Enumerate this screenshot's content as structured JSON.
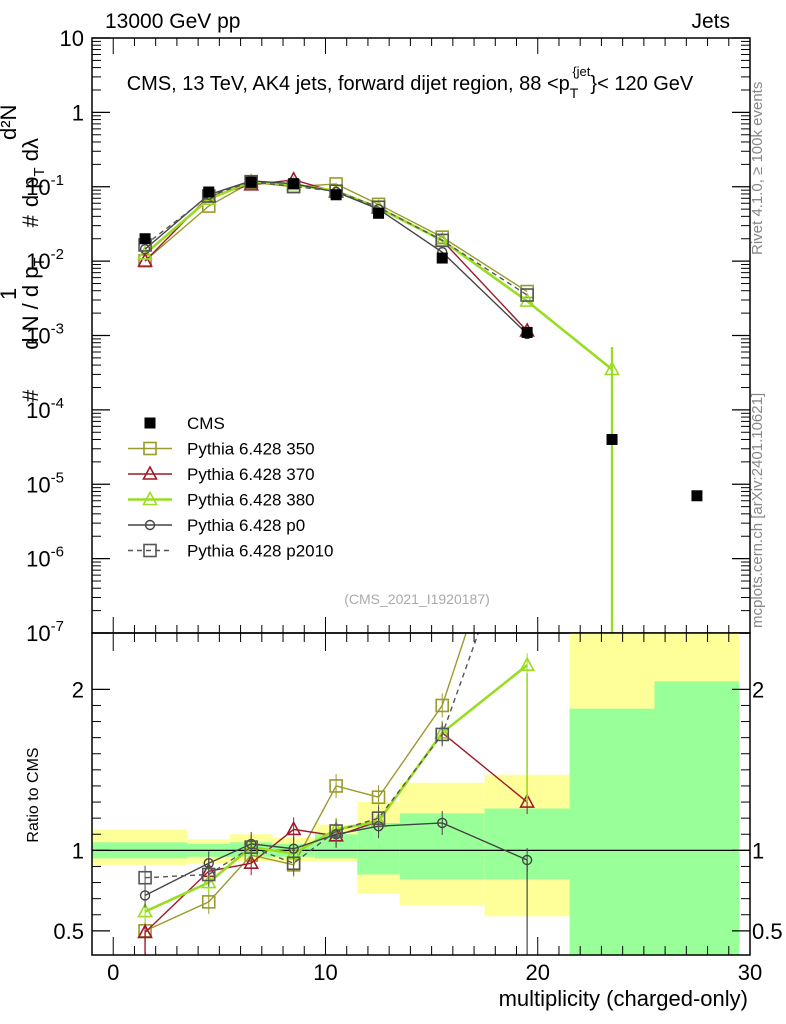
{
  "header": {
    "left": "13000 GeV pp",
    "right": "Jets"
  },
  "side_labels": {
    "rivet": "Rivet 4.1.0, ≥ 100k events",
    "mcplots": "mcplots.cern.ch [arXiv:2401.10621]"
  },
  "chart_data": [
    {
      "type": "scatter",
      "title": "CMS, 13 TeV, AK4 jets, forward dijet region, 88 <p_T^{jet}< 120 GeV",
      "analysis_tag": "(CMS_2021_I1920187)",
      "xlabel": "",
      "ylabel": "1/(dN/dp_T) · d²N/(dp_T dλ)",
      "y_scale": "log",
      "xlim": [
        -1,
        30
      ],
      "ylim": [
        1e-07,
        10
      ],
      "y_ticks": [
        "10^{-7}",
        "10^{-6}",
        "10^{-5}",
        "10^{-4}",
        "10^{-3}",
        "10^{-2}",
        "10^{-1}",
        "1",
        "10"
      ],
      "legend_position": "bottom-left",
      "series": [
        {
          "name": "CMS",
          "color": "#000000",
          "marker": "filled-square",
          "x": [
            1.5,
            4.5,
            6.5,
            8.5,
            10.5,
            12.5,
            15.5,
            19.5,
            23.5,
            27.5
          ],
          "y": [
            0.02,
            0.085,
            0.115,
            0.11,
            0.078,
            0.044,
            0.011,
            0.0011,
            4e-05,
            7e-06
          ]
        },
        {
          "name": "Pythia 6.428 350",
          "color": "#9a9a2e",
          "marker": "open-square",
          "x": [
            1.5,
            4.5,
            6.5,
            8.5,
            10.5,
            12.5,
            15.5,
            19.5
          ],
          "y": [
            0.0101,
            0.055,
            0.115,
            0.1,
            0.109,
            0.058,
            0.021,
            0.0039
          ]
        },
        {
          "name": "Pythia 6.428 370",
          "color": "#9e1a2a",
          "marker": "open-triangle",
          "x": [
            1.5,
            4.5,
            6.5,
            8.5,
            10.5,
            12.5,
            15.5,
            19.5
          ],
          "y": [
            0.01,
            0.074,
            0.106,
            0.124,
            0.085,
            0.052,
            0.019,
            0.00115
          ]
        },
        {
          "name": "Pythia 6.428 380",
          "color": "#99dd22",
          "marker": "open-triangle",
          "x": [
            1.5,
            4.5,
            6.5,
            8.5,
            10.5,
            12.5,
            15.5,
            19.5,
            23.5
          ],
          "y": [
            0.0125,
            0.068,
            0.117,
            0.107,
            0.088,
            0.052,
            0.019,
            0.0029,
            0.00035
          ]
        },
        {
          "name": "Pythia 6.428 p0",
          "color": "#444444",
          "marker": "open-circle",
          "x": [
            1.5,
            4.5,
            6.5,
            8.5,
            10.5,
            12.5,
            15.5,
            19.5
          ],
          "y": [
            0.0145,
            0.078,
            0.12,
            0.11,
            0.085,
            0.05,
            0.0132,
            0.00105
          ]
        },
        {
          "name": "Pythia 6.428 p2010",
          "color": "#555555",
          "marker": "open-square",
          "dashed": true,
          "x": [
            1.5,
            4.5,
            6.5,
            8.5,
            10.5,
            12.5,
            15.5,
            19.5
          ],
          "y": [
            0.0165,
            0.075,
            0.117,
            0.101,
            0.087,
            0.053,
            0.019,
            0.0035
          ]
        }
      ]
    },
    {
      "type": "line",
      "xlabel": "multiplicity (charged-only)",
      "ylabel": "Ratio to CMS",
      "xlim": [
        -1,
        30
      ],
      "ylim": [
        0.35,
        2.35
      ],
      "x_ticks": [
        0,
        10,
        20,
        30
      ],
      "y_ticks": [
        0.5,
        1,
        2
      ],
      "x_tick_labels": [
        "0",
        "10",
        "20",
        "30"
      ],
      "y_tick_labels": [
        "0.5",
        "1",
        "2"
      ],
      "uncertainty_bands": {
        "edges": [
          -1,
          3.5,
          5.5,
          7.5,
          9.5,
          11.5,
          13.5,
          17.5,
          21.5,
          25.5,
          29.5
        ],
        "green_lo": [
          0.95,
          0.96,
          0.96,
          0.96,
          0.95,
          0.85,
          0.82,
          0.82,
          0.35,
          0.35
        ],
        "green_hi": [
          1.05,
          1.04,
          1.05,
          1.04,
          1.1,
          1.17,
          1.23,
          1.26,
          1.88,
          2.05
        ],
        "yellow_lo": [
          0.91,
          0.92,
          0.93,
          0.93,
          0.93,
          0.73,
          0.66,
          0.59,
          0.35,
          0.35
        ],
        "yellow_hi": [
          1.13,
          1.07,
          1.1,
          1.08,
          1.16,
          1.3,
          1.42,
          1.47,
          2.35,
          2.35
        ]
      },
      "series": [
        {
          "name": "Pythia 6.428 350",
          "color": "#9a9a2e",
          "marker": "open-square",
          "x": [
            1.5,
            4.5,
            6.5,
            8.5,
            10.5,
            12.5,
            15.5,
            19.5
          ],
          "y": [
            0.5,
            0.68,
            0.97,
            0.91,
            1.4,
            1.33,
            1.9,
            3.5
          ]
        },
        {
          "name": "Pythia 6.428 370",
          "color": "#9e1a2a",
          "marker": "open-triangle",
          "x": [
            1.5,
            4.5,
            6.5,
            8.5,
            10.5,
            12.5,
            15.5,
            19.5
          ],
          "y": [
            0.49,
            0.87,
            0.92,
            1.13,
            1.09,
            1.18,
            1.73,
            1.3
          ]
        },
        {
          "name": "Pythia 6.428 380",
          "color": "#99dd22",
          "marker": "open-triangle",
          "x": [
            1.5,
            4.5,
            6.5,
            8.5,
            10.5,
            12.5,
            15.5,
            19.5
          ],
          "y": [
            0.62,
            0.8,
            1.02,
            0.98,
            1.13,
            1.18,
            1.73,
            2.15
          ]
        },
        {
          "name": "Pythia 6.428 p0",
          "color": "#444444",
          "marker": "open-circle",
          "x": [
            1.5,
            4.5,
            6.5,
            8.5,
            10.5,
            12.5,
            15.5,
            19.5
          ],
          "y": [
            0.72,
            0.92,
            1.04,
            1.01,
            1.1,
            1.15,
            1.17,
            0.94
          ]
        },
        {
          "name": "Pythia 6.428 p2010",
          "color": "#555555",
          "marker": "open-square",
          "dashed": true,
          "x": [
            1.5,
            4.5,
            6.5,
            8.5,
            10.5,
            12.5,
            15.5,
            19.5
          ],
          "y": [
            0.83,
            0.85,
            1.02,
            0.92,
            1.12,
            1.2,
            1.72,
            3.2
          ]
        }
      ]
    }
  ]
}
